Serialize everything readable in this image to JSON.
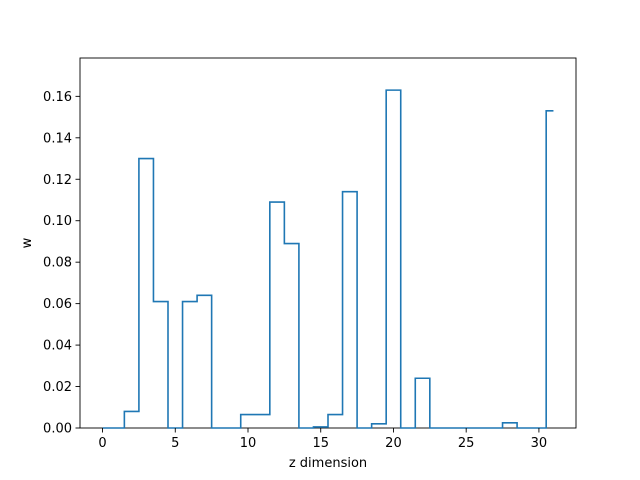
{
  "chart_data": {
    "type": "step",
    "title": "",
    "xlabel": "z dimension",
    "ylabel": "w",
    "xlim": [
      -1.55,
      32.55
    ],
    "ylim": [
      0,
      0.1785
    ],
    "grid": false,
    "legend": "none",
    "line_color": "#1f77b4",
    "x": [
      0,
      1,
      2,
      3,
      4,
      5,
      6,
      7,
      8,
      9,
      10,
      11,
      12,
      13,
      14,
      15,
      16,
      17,
      18,
      19,
      20,
      21,
      22,
      23,
      24,
      25,
      26,
      27,
      28,
      29,
      30,
      31
    ],
    "values": [
      0,
      0,
      0.008,
      0.13,
      0.061,
      0,
      0.061,
      0.064,
      0,
      0,
      0.0065,
      0.0065,
      0.109,
      0.089,
      0,
      0.0005,
      0.0065,
      0.114,
      0,
      0.002,
      0.163,
      0,
      0.024,
      0,
      0,
      0,
      0,
      0,
      0.0025,
      0,
      0,
      0.153
    ],
    "x_ticks": [
      "0",
      "5",
      "10",
      "15",
      "20",
      "25",
      "30"
    ],
    "x_tick_values": [
      0,
      5,
      10,
      15,
      20,
      25,
      30
    ],
    "y_ticks": [
      "0.00",
      "0.02",
      "0.04",
      "0.06",
      "0.08",
      "0.10",
      "0.12",
      "0.14",
      "0.16"
    ],
    "y_tick_values": [
      0,
      0.02,
      0.04,
      0.06,
      0.08,
      0.1,
      0.12,
      0.14,
      0.16
    ]
  }
}
